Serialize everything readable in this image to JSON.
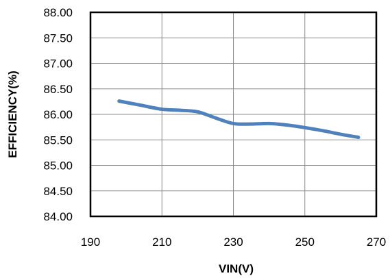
{
  "chart_data": {
    "type": "line",
    "title": "",
    "xlabel": "VIN(V)",
    "ylabel": "EFFICIENCY(%)",
    "xlim": [
      190,
      270
    ],
    "ylim": [
      84.0,
      88.0
    ],
    "x_ticks": [
      "190",
      "210",
      "230",
      "250",
      "270"
    ],
    "y_ticks": [
      "84.00",
      "84.50",
      "85.00",
      "85.50",
      "86.00",
      "86.50",
      "87.00",
      "87.50",
      "88.00"
    ],
    "grid": true,
    "legend": "none",
    "series": [
      {
        "color": "#4f81bd",
        "points": [
          {
            "x": 198,
            "y": 86.26
          },
          {
            "x": 204,
            "y": 86.18
          },
          {
            "x": 210,
            "y": 86.1
          },
          {
            "x": 215,
            "y": 86.08
          },
          {
            "x": 220,
            "y": 86.05
          },
          {
            "x": 225,
            "y": 85.93
          },
          {
            "x": 230,
            "y": 85.82
          },
          {
            "x": 235,
            "y": 85.81
          },
          {
            "x": 240,
            "y": 85.82
          },
          {
            "x": 245,
            "y": 85.79
          },
          {
            "x": 250,
            "y": 85.74
          },
          {
            "x": 255,
            "y": 85.68
          },
          {
            "x": 260,
            "y": 85.61
          },
          {
            "x": 265,
            "y": 85.55
          }
        ]
      }
    ]
  }
}
